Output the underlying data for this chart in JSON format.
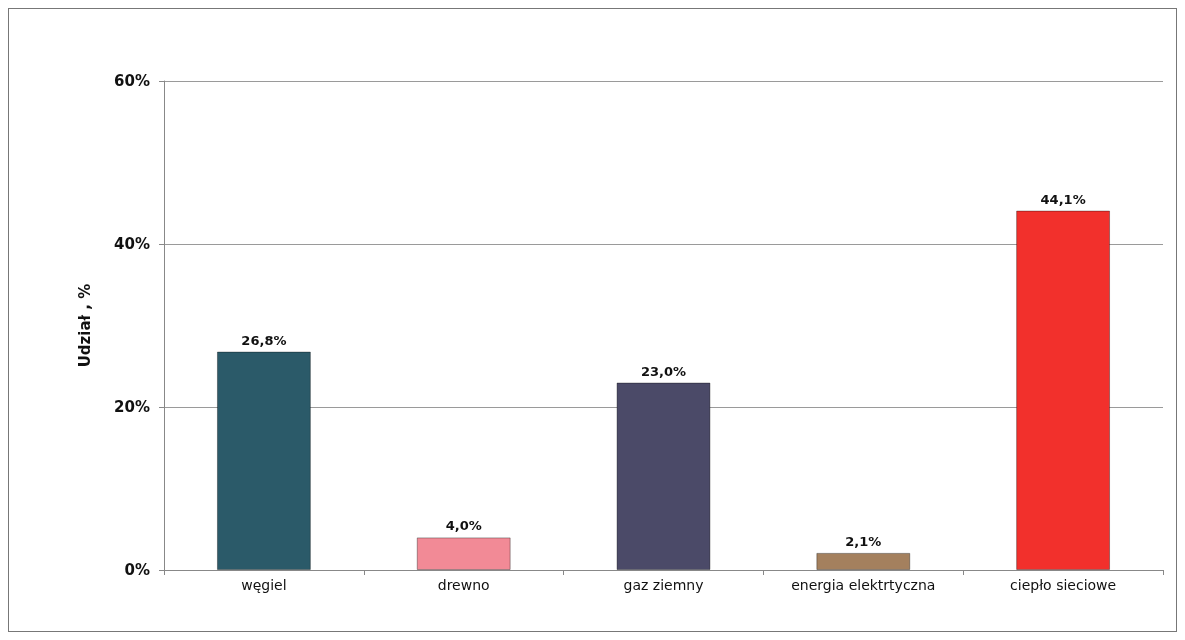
{
  "chart_data": {
    "type": "bar",
    "ylabel": "Udział , %",
    "categories": [
      "węgiel",
      "drewno",
      "gaz ziemny",
      "energia elektrtyczna",
      "ciepło sieciowe"
    ],
    "values": [
      26.8,
      4.0,
      23.0,
      2.1,
      44.1
    ],
    "colors": [
      "#2b5a69",
      "#f28a96",
      "#4b4a68",
      "#a4805e",
      "#f2302c"
    ],
    "value_labels": [
      "26,8%",
      "4,0%",
      "23,0%",
      "2,1%",
      "44,1%"
    ],
    "ylim": [
      0,
      60
    ],
    "yticks": [
      {
        "value": 0,
        "label": "0%"
      },
      {
        "value": 20,
        "label": "20%"
      },
      {
        "value": 40,
        "label": "40%"
      },
      {
        "value": 60,
        "label": "60%"
      }
    ],
    "grid": "y"
  }
}
